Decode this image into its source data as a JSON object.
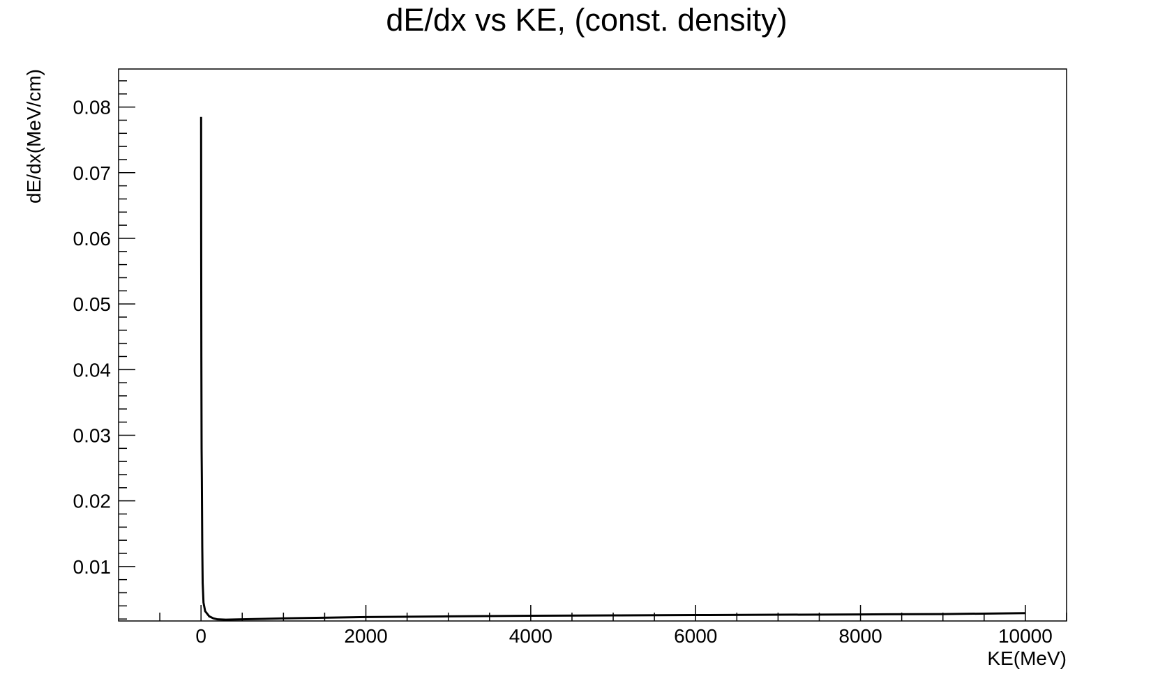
{
  "chart_data": {
    "type": "line",
    "title": "dE/dx vs KE, (const. density)",
    "xlabel": "KE(MeV)",
    "ylabel": "dE/dx(MeV/cm)",
    "xlim": [
      -1000,
      10500
    ],
    "ylim": [
      0.0017,
      0.0858
    ],
    "xticks": [
      0,
      2000,
      4000,
      6000,
      8000,
      10000
    ],
    "xtick_labels": [
      "0",
      "2000",
      "4000",
      "6000",
      "8000",
      "10000"
    ],
    "yticks": [
      0.01,
      0.02,
      0.03,
      0.04,
      0.05,
      0.06,
      0.07,
      0.08
    ],
    "ytick_labels": [
      "0.01",
      "0.02",
      "0.03",
      "0.04",
      "0.05",
      "0.06",
      "0.07",
      "0.08"
    ],
    "grid": false,
    "legend": "none",
    "series": [
      {
        "color": "#000000",
        "x": [
          1,
          2,
          4,
          7,
          10,
          15,
          20,
          30,
          50,
          100,
          150,
          200,
          300,
          500,
          1000,
          2000,
          3000,
          4000,
          5000,
          6000,
          7000,
          8000,
          9000,
          10000
        ],
        "y": [
          0.0785,
          0.06,
          0.042,
          0.028,
          0.0235,
          0.013,
          0.0075,
          0.0045,
          0.0032,
          0.0024,
          0.0021,
          0.00195,
          0.0019,
          0.00195,
          0.0021,
          0.0023,
          0.0024,
          0.0025,
          0.00255,
          0.0026,
          0.00265,
          0.0027,
          0.00275,
          0.0029
        ]
      }
    ]
  }
}
